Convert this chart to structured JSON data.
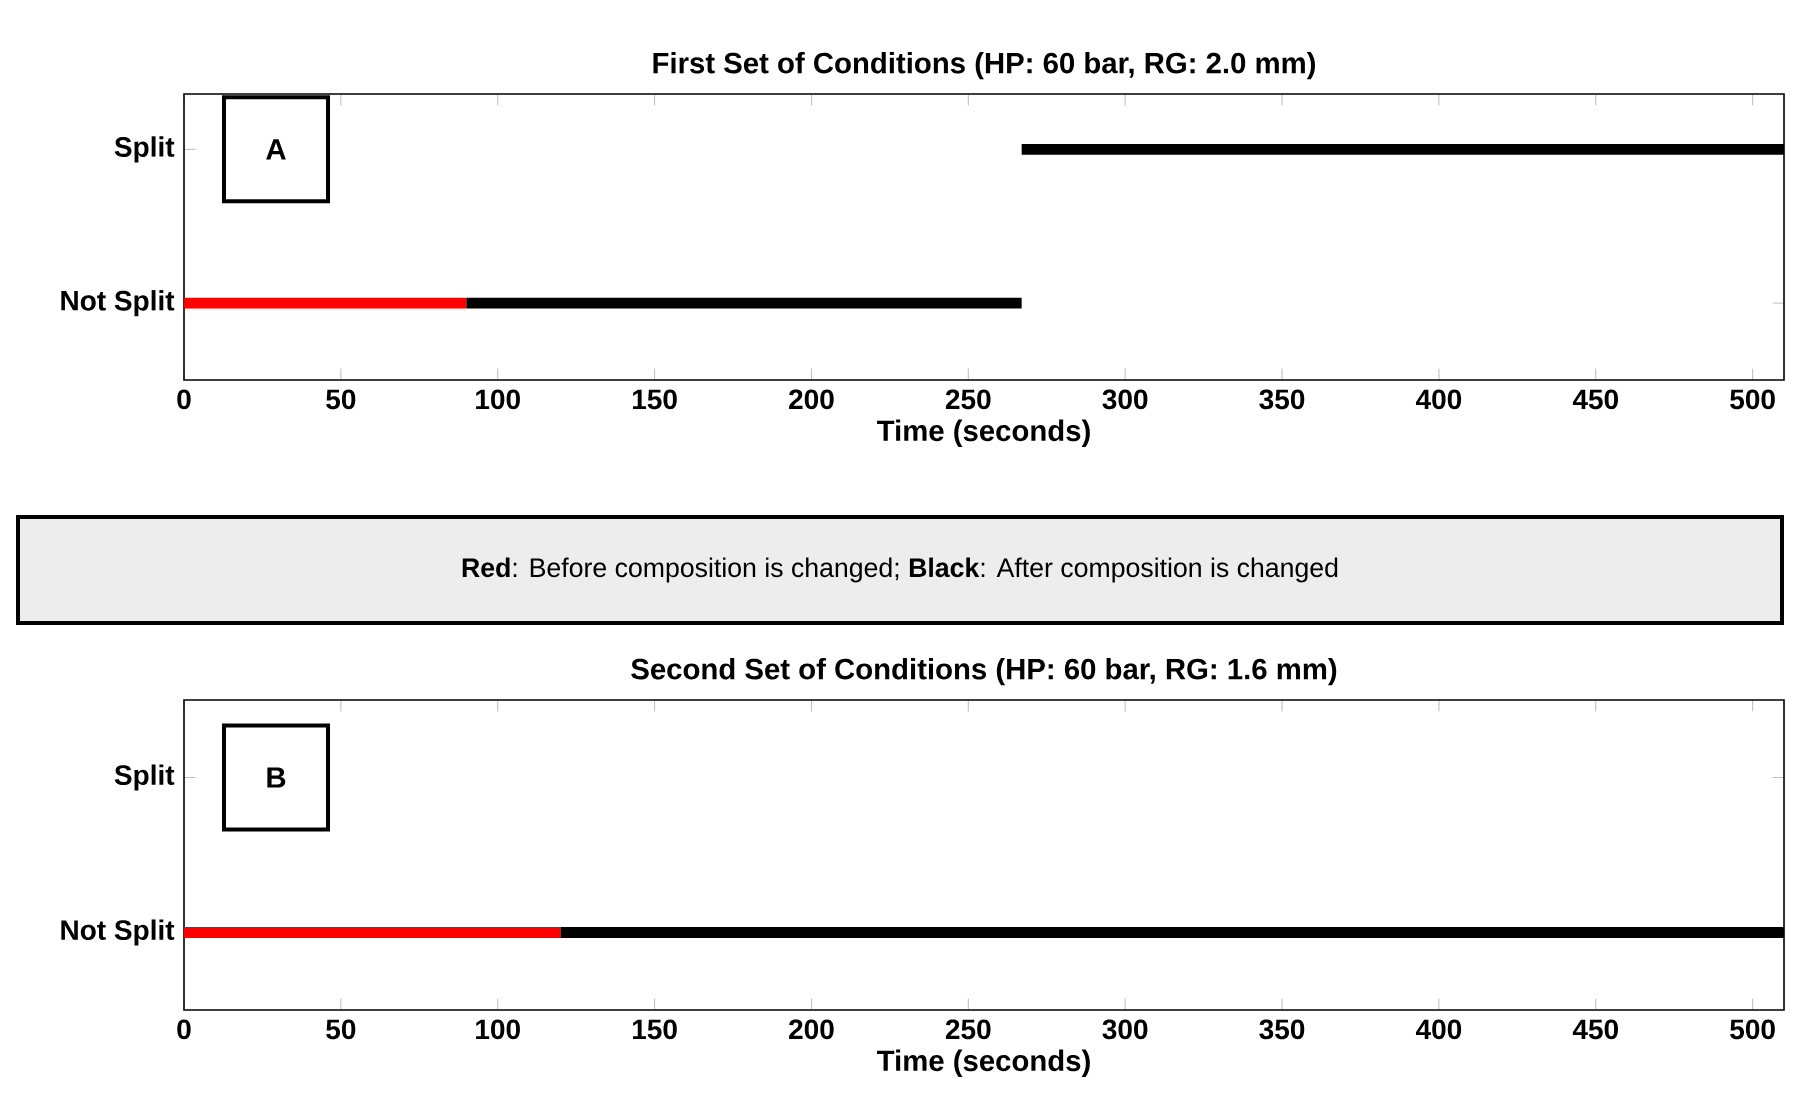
{
  "chart_data": [
    {
      "type": "bar",
      "orientation": "horizontal",
      "title": "First Set of Conditions (HP: 60 bar, RG: 2.0 mm)",
      "xlabel": "Time (seconds)",
      "xlim": [
        0,
        510
      ],
      "xticks": [
        0,
        50,
        100,
        150,
        200,
        250,
        300,
        350,
        400,
        450,
        500
      ],
      "categories": [
        "Split",
        "Not Split"
      ],
      "annotations": [
        "A",
        "**Red**: Before composition is changed; **Black**: After composition is changed"
      ],
      "series": [
        {
          "color": "#ff0000",
          "base": [
            null,
            0
          ],
          "values": [
            null,
            90
          ]
        },
        {
          "color": "#000000",
          "base": [
            267,
            90
          ],
          "values": [
            243,
            177
          ]
        }
      ]
    },
    {
      "type": "bar",
      "orientation": "horizontal",
      "title": "Second Set of Conditions (HP: 60 bar, RG: 1.6 mm)",
      "xlabel": "Time (seconds)",
      "xlim": [
        0,
        510
      ],
      "xticks": [
        0,
        50,
        100,
        150,
        200,
        250,
        300,
        350,
        400,
        450,
        500
      ],
      "categories": [
        "Split",
        "Not Split"
      ],
      "annotations": [
        "B"
      ],
      "series": [
        {
          "color": "#ff0000",
          "base": [
            null,
            0
          ],
          "values": [
            null,
            120
          ]
        },
        {
          "color": "#000000",
          "base": [
            null,
            120
          ],
          "values": [
            null,
            390
          ]
        }
      ]
    }
  ]
}
